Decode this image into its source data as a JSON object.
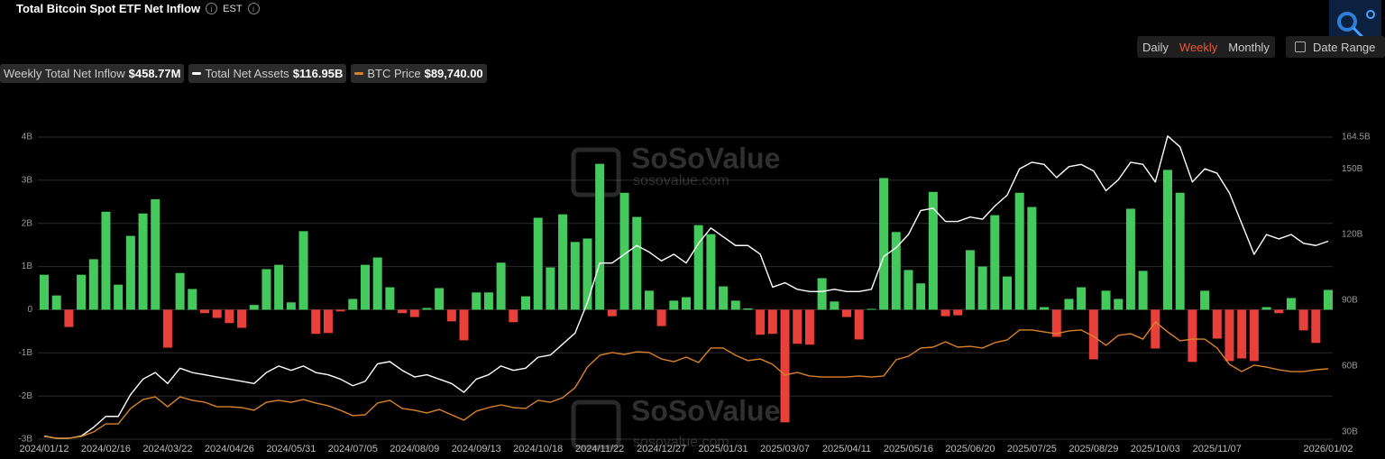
{
  "header": {
    "title": "Total Bitcoin Spot ETF Net Inflow",
    "timezone": "EST",
    "intervals": [
      "Daily",
      "Weekly",
      "Monthly"
    ],
    "active_interval": "Weekly",
    "date_range": "Date Range"
  },
  "chart_data": {
    "type": "bar",
    "watermark": "SoSoValue",
    "watermark_url": "sosovalue.com",
    "categories": [
      "2024/01/12",
      null,
      null,
      null,
      null,
      "2024/02/16",
      null,
      null,
      null,
      null,
      "2024/03/22",
      null,
      null,
      null,
      null,
      "2024/04/26",
      null,
      null,
      null,
      null,
      "2024/05/31",
      null,
      null,
      null,
      null,
      "2024/07/05",
      null,
      null,
      null,
      null,
      "2024/08/09",
      null,
      null,
      null,
      null,
      "2024/09/13",
      null,
      null,
      null,
      null,
      "2024/10/18",
      null,
      null,
      null,
      null,
      "2024/11/22",
      null,
      null,
      null,
      null,
      "2024/12/27",
      null,
      null,
      null,
      null,
      "2025/01/31",
      null,
      null,
      null,
      null,
      "2025/03/07",
      null,
      null,
      null,
      null,
      "2025/04/11",
      null,
      null,
      null,
      null,
      "2025/05/16",
      null,
      null,
      null,
      null,
      "2025/06/20",
      null,
      null,
      null,
      null,
      "2025/07/25",
      null,
      null,
      null,
      null,
      "2025/08/29",
      null,
      null,
      null,
      null,
      "2025/10/03",
      null,
      null,
      null,
      null,
      "2025/11/07",
      null,
      null,
      null,
      null,
      null,
      null,
      null,
      null,
      "2026/01/02"
    ],
    "ylim": [
      -3,
      4
    ],
    "yticks": [
      {
        "value": -3,
        "label": "-3B"
      },
      {
        "value": -2,
        "label": "-2B"
      },
      {
        "value": -1,
        "label": "-1B"
      },
      0,
      {
        "value": 1,
        "label": "1B"
      },
      {
        "value": 2,
        "label": "2B"
      },
      {
        "value": 3,
        "label": "3B"
      },
      {
        "value": 4,
        "label": "4B"
      }
    ],
    "y2lim": [
      26.6,
      164.5
    ],
    "y2ticks": [
      {
        "value": 30,
        "label": "30B"
      },
      {
        "value": 60,
        "label": "60B"
      },
      {
        "value": 90,
        "label": "90B"
      },
      {
        "value": 120,
        "label": "120B"
      },
      {
        "value": 150,
        "label": "150B"
      },
      {
        "value": 164.5,
        "label": "164.5B"
      }
    ],
    "y3lim": [
      40130,
      253200
    ],
    "grid": true,
    "series": [
      {
        "name": "Weekly Total Net Inflow",
        "current": "$458.77M",
        "type": "bar",
        "color_positive": "#45c95c",
        "color_negative": "#e8403a",
        "values": [
          0.81,
          0.33,
          -0.4,
          0.81,
          1.17,
          2.27,
          0.58,
          1.71,
          2.23,
          2.56,
          -0.88,
          0.85,
          0.48,
          -0.08,
          -0.19,
          -0.31,
          -0.42,
          0.11,
          0.94,
          1.04,
          0.17,
          1.82,
          -0.56,
          -0.54,
          -0.04,
          0.25,
          1.04,
          1.21,
          0.52,
          -0.08,
          -0.17,
          0.04,
          0.5,
          -0.27,
          -0.71,
          0.4,
          0.4,
          1.09,
          -0.29,
          0.31,
          2.13,
          0.98,
          2.21,
          1.57,
          1.65,
          3.38,
          -0.15,
          2.71,
          2.15,
          0.44,
          -0.38,
          0.21,
          0.29,
          1.96,
          1.75,
          0.54,
          0.21,
          0.03,
          -0.58,
          -0.56,
          -2.61,
          -0.79,
          -0.81,
          0.73,
          0.19,
          -0.17,
          -0.69,
          0.02,
          3.05,
          1.8,
          0.92,
          0.61,
          2.73,
          -0.15,
          -0.13,
          1.38,
          1.0,
          2.19,
          0.77,
          2.71,
          2.38,
          0.06,
          -0.63,
          0.25,
          0.52,
          -1.15,
          0.44,
          0.25,
          2.34,
          0.9,
          -0.9,
          3.24,
          2.71,
          -1.21,
          0.44,
          -0.67,
          -1.19,
          -1.13,
          -1.19,
          0.06,
          -0.08,
          0.27,
          -0.48,
          -0.77,
          0.45877
        ]
      },
      {
        "name": "Total Net Assets",
        "current": "$116.95B",
        "type": "line",
        "axis": "y2",
        "color": "#ffffff",
        "values": [
          28,
          27,
          27,
          28,
          32,
          37,
          37,
          47,
          54,
          57,
          52,
          59,
          57,
          56,
          55,
          54,
          53,
          52,
          57,
          60,
          58,
          60,
          57,
          56,
          54,
          51,
          53,
          61,
          62,
          58,
          55,
          56,
          54,
          52,
          48,
          54,
          56,
          60,
          58,
          59,
          64,
          65,
          70,
          75,
          89,
          107,
          107,
          111,
          115,
          112,
          108,
          111,
          107,
          116,
          123,
          119,
          115,
          115,
          111,
          96,
          98,
          95,
          94,
          94,
          95,
          94,
          94,
          95,
          110,
          114,
          120,
          131,
          132,
          126,
          126,
          128,
          127,
          133,
          138,
          150,
          153,
          152,
          146,
          151,
          152,
          149,
          140,
          145,
          153,
          152,
          144,
          165,
          160,
          144,
          150,
          148,
          139,
          125,
          111,
          120,
          118,
          120,
          116,
          115,
          116.95
        ]
      },
      {
        "name": "BTC Price",
        "current": "$89,740.00",
        "type": "line",
        "axis": "y3",
        "color": "#d9822b",
        "values": [
          42000,
          40800,
          40800,
          42000,
          45200,
          50900,
          50900,
          61800,
          68100,
          70000,
          63000,
          70000,
          67500,
          66200,
          63000,
          63000,
          62400,
          60500,
          66200,
          67500,
          66200,
          68100,
          65600,
          63700,
          60500,
          56700,
          57300,
          65600,
          67500,
          61800,
          60500,
          58600,
          61100,
          57300,
          53500,
          59900,
          62400,
          64300,
          62400,
          61800,
          67500,
          66200,
          69400,
          76400,
          91000,
          99300,
          101200,
          99900,
          101800,
          101200,
          96700,
          94800,
          98000,
          94200,
          104400,
          104400,
          99300,
          95500,
          96700,
          92900,
          85300,
          87200,
          84700,
          84000,
          84000,
          84000,
          84700,
          84000,
          84700,
          96100,
          98600,
          104400,
          105000,
          108800,
          105000,
          105600,
          104400,
          108200,
          110100,
          117100,
          117100,
          115800,
          114500,
          116500,
          117100,
          112600,
          106300,
          113300,
          114500,
          110700,
          122800,
          115800,
          109500,
          110700,
          110700,
          104400,
          92900,
          87800,
          92300,
          91000,
          89100,
          87800,
          87800,
          89100,
          89740
        ]
      }
    ]
  }
}
